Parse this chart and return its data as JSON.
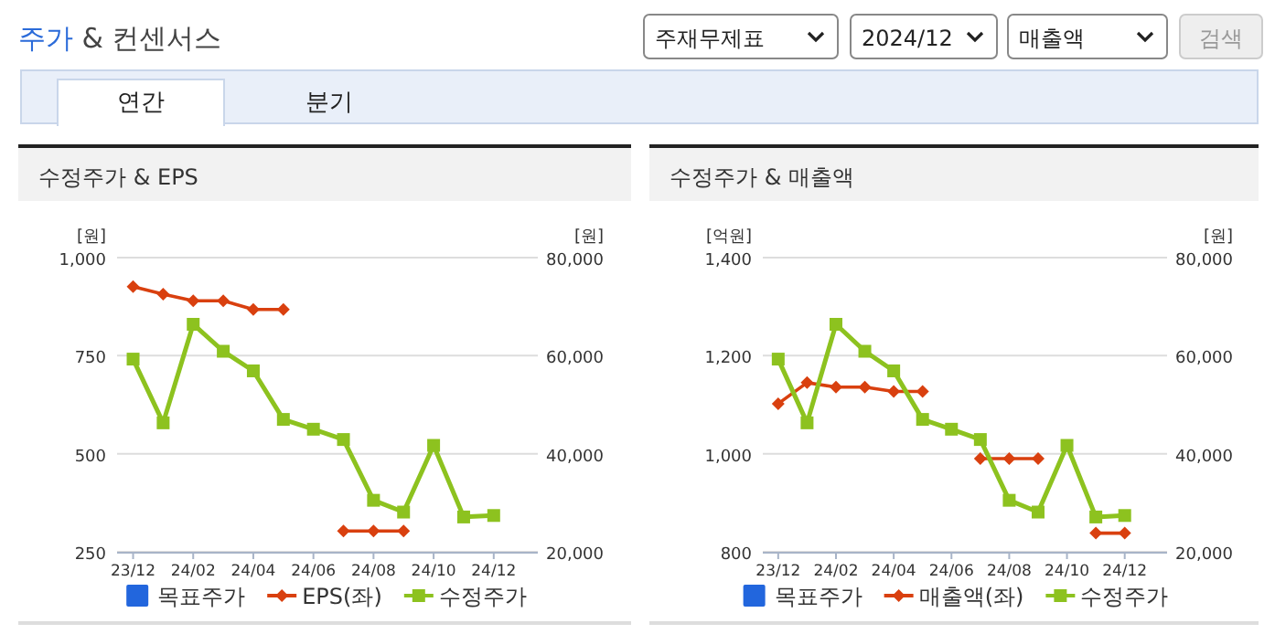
{
  "chart_data": [
    {
      "type": "other",
      "title": "주가 & 컨센서스",
      "annotations": [
        "주재무제표",
        "2024/12",
        "매출액",
        "검색",
        "연간",
        "분기"
      ]
    },
    {
      "type": "line",
      "title": "수정주가 & EPS",
      "ylabel": "[원]",
      "y2label": "[원]",
      "x": [
        "2023-12",
        "2024-01",
        "2024-02",
        "2024-03",
        "2024-04",
        "2024-05",
        "2024-06",
        "2024-07",
        "2024-08",
        "2024-09",
        "2024-10",
        "2024-11",
        "2024-12"
      ],
      "xlim": [
        "2023-11-15",
        "2025-01-15"
      ],
      "xticks": [
        {
          "value": "2023-12",
          "label": "23/12"
        },
        {
          "value": "2024-02",
          "label": "24/02"
        },
        {
          "value": "2024-04",
          "label": "24/04"
        },
        {
          "value": "2024-06",
          "label": "24/06"
        },
        {
          "value": "2024-08",
          "label": "24/08"
        },
        {
          "value": "2024-10",
          "label": "24/10"
        },
        {
          "value": "2024-12",
          "label": "24/12"
        }
      ],
      "ylim": [
        250,
        1000
      ],
      "yticks": [
        250,
        500,
        750,
        {
          "value": 1000,
          "label": "1,000"
        }
      ],
      "y2lim": [
        20000,
        80000
      ],
      "y2ticks": [
        {
          "value": 20000,
          "label": "20,000"
        },
        {
          "value": 40000,
          "label": "40,000"
        },
        {
          "value": 60000,
          "label": "60,000"
        },
        {
          "value": 80000,
          "label": "80,000"
        }
      ],
      "grid": "y",
      "legend": "bottom",
      "line_style": "solid",
      "series": [
        {
          "name": "목표주가",
          "color": "#2266dd",
          "marker": "square",
          "values": [
            null,
            null,
            null,
            null,
            null,
            null,
            null,
            null,
            null,
            null,
            null,
            null,
            null
          ]
        },
        {
          "name": "EPS(좌)",
          "color": "#d9400f",
          "marker": "diamond",
          "values": [
            926,
            907,
            890,
            890,
            868,
            868,
            null,
            303,
            303,
            303,
            null,
            null,
            null
          ]
        },
        {
          "name": "수정주가",
          "color": "#8dc21f",
          "marker": "square",
          "axis": "y2",
          "values": [
            59300,
            46300,
            66400,
            60900,
            56900,
            47000,
            45000,
            42900,
            30500,
            28100,
            41700,
            27100,
            27400
          ]
        }
      ]
    },
    {
      "type": "line",
      "title": "수정주가 & 매출액",
      "ylabel": "[억원]",
      "y2label": "[원]",
      "x": [
        "2023-12",
        "2024-01",
        "2024-02",
        "2024-03",
        "2024-04",
        "2024-05",
        "2024-06",
        "2024-07",
        "2024-08",
        "2024-09",
        "2024-10",
        "2024-11",
        "2024-12"
      ],
      "xlim": [
        "2023-11-15",
        "2025-01-15"
      ],
      "xticks": [
        {
          "value": "2023-12",
          "label": "23/12"
        },
        {
          "value": "2024-02",
          "label": "24/02"
        },
        {
          "value": "2024-04",
          "label": "24/04"
        },
        {
          "value": "2024-06",
          "label": "24/06"
        },
        {
          "value": "2024-08",
          "label": "24/08"
        },
        {
          "value": "2024-10",
          "label": "24/10"
        },
        {
          "value": "2024-12",
          "label": "24/12"
        }
      ],
      "ylim": [
        800,
        1400
      ],
      "yticks": [
        800,
        {
          "value": 1000,
          "label": "1,000"
        },
        {
          "value": 1200,
          "label": "1,200"
        },
        {
          "value": 1400,
          "label": "1,400"
        }
      ],
      "y2lim": [
        20000,
        80000
      ],
      "y2ticks": [
        {
          "value": 20000,
          "label": "20,000"
        },
        {
          "value": 40000,
          "label": "40,000"
        },
        {
          "value": 60000,
          "label": "60,000"
        },
        {
          "value": 80000,
          "label": "80,000"
        }
      ],
      "grid": "y",
      "legend": "bottom",
      "line_style": "solid",
      "series": [
        {
          "name": "목표주가",
          "color": "#2266dd",
          "marker": "square",
          "values": [
            null,
            null,
            null,
            null,
            null,
            null,
            null,
            null,
            null,
            null,
            null,
            null,
            null
          ]
        },
        {
          "name": "매출액(좌)",
          "color": "#d9400f",
          "marker": "diamond",
          "values": [
            1102,
            1145,
            1136,
            1136,
            1127,
            1127,
            null,
            990,
            990,
            990,
            null,
            838,
            838
          ]
        },
        {
          "name": "수정주가",
          "color": "#8dc21f",
          "marker": "square",
          "axis": "y2",
          "values": [
            59300,
            46300,
            66400,
            60900,
            56900,
            47000,
            45000,
            42900,
            30500,
            28100,
            41700,
            27100,
            27400
          ]
        }
      ]
    }
  ]
}
